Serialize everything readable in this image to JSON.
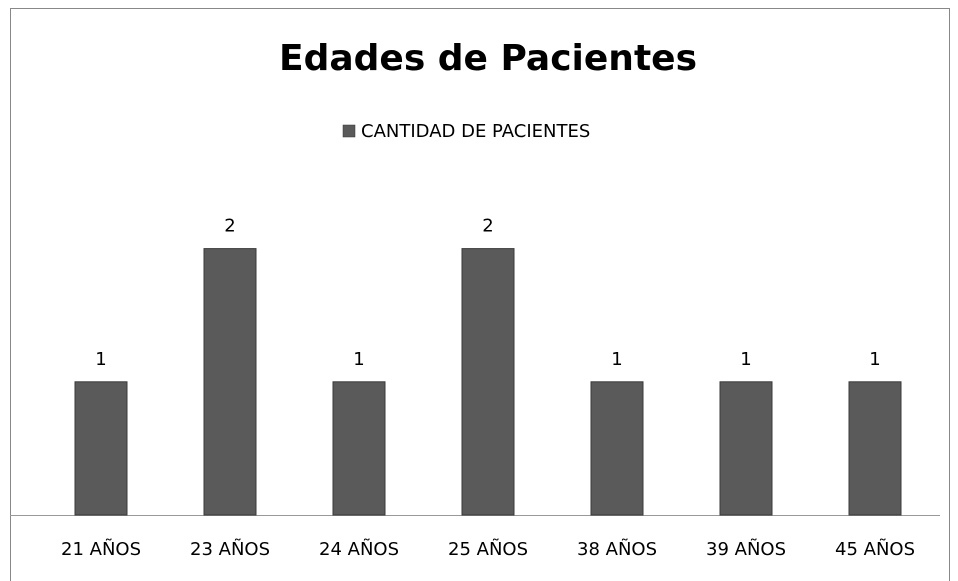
{
  "chart_data": {
    "type": "bar",
    "title": "Edades de Pacientes",
    "categories": [
      "21 AÑOS",
      "23 AÑOS",
      "24 AÑOS",
      "25 AÑOS",
      "38 AÑOS",
      "39 AÑOS",
      "45 AÑOS"
    ],
    "series": [
      {
        "name": "CANTIDAD DE PACIENTES",
        "color": "#5a5a5a",
        "values": [
          1,
          2,
          1,
          2,
          1,
          1,
          1
        ]
      }
    ],
    "ylim": [
      0,
      2.5
    ],
    "legend": "top",
    "data_labels": true
  }
}
